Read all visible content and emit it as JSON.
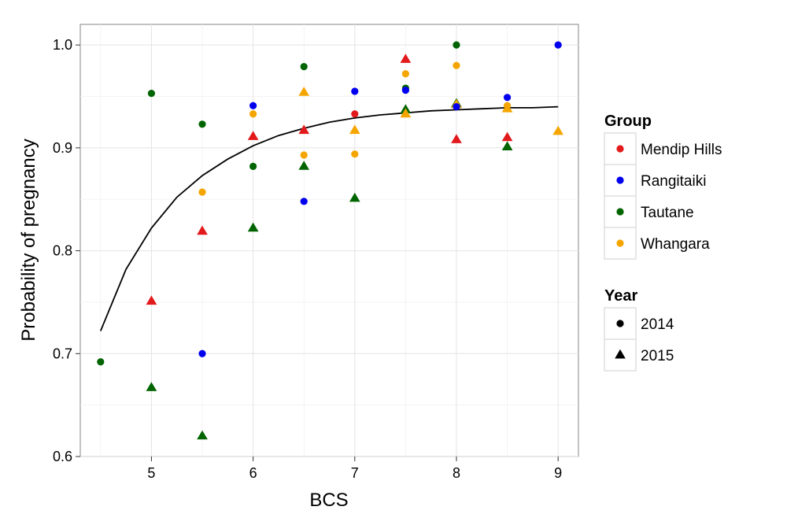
{
  "chart_data": {
    "type": "scatter",
    "xlabel": "BCS",
    "ylabel": "Probability of pregnancy",
    "xlim": [
      4.3,
      9.2
    ],
    "ylim": [
      0.6,
      1.02
    ],
    "x_ticks": [
      5,
      6,
      7,
      8,
      9
    ],
    "y_ticks": [
      0.6,
      0.7,
      0.8,
      0.9,
      1.0
    ],
    "x_tick_labels": [
      "5",
      "6",
      "7",
      "8",
      "9"
    ],
    "y_tick_labels": [
      "0.6",
      "0.7",
      "0.8",
      "0.9",
      "1.0"
    ],
    "grid": true,
    "legend_position": "right",
    "legends": {
      "group": {
        "title": "Group",
        "items": [
          {
            "key": "mendip",
            "label": "Mendip Hills",
            "color": "#e31a1c"
          },
          {
            "key": "rangitaiki",
            "label": "Rangitaiki",
            "color": "#0000ee"
          },
          {
            "key": "tautane",
            "label": "Tautane",
            "color": "#006400"
          },
          {
            "key": "whangara",
            "label": "Whangara",
            "color": "#f5a500"
          }
        ]
      },
      "year": {
        "title": "Year",
        "items": [
          {
            "label": "2014",
            "shape": "circle"
          },
          {
            "label": "2015",
            "shape": "triangle"
          }
        ]
      }
    },
    "points": [
      {
        "group": "tautane",
        "year": "2014",
        "x": 4.5,
        "y": 0.692
      },
      {
        "group": "tautane",
        "year": "2014",
        "x": 5.0,
        "y": 0.953
      },
      {
        "group": "mendip",
        "year": "2015",
        "x": 5.0,
        "y": 0.751
      },
      {
        "group": "tautane",
        "year": "2015",
        "x": 5.0,
        "y": 0.667
      },
      {
        "group": "tautane",
        "year": "2014",
        "x": 5.5,
        "y": 0.923
      },
      {
        "group": "whangara",
        "year": "2014",
        "x": 5.5,
        "y": 0.857
      },
      {
        "group": "mendip",
        "year": "2015",
        "x": 5.5,
        "y": 0.819
      },
      {
        "group": "rangitaiki",
        "year": "2014",
        "x": 5.5,
        "y": 0.7
      },
      {
        "group": "tautane",
        "year": "2015",
        "x": 5.5,
        "y": 0.62
      },
      {
        "group": "rangitaiki",
        "year": "2014",
        "x": 6.0,
        "y": 0.941
      },
      {
        "group": "whangara",
        "year": "2014",
        "x": 6.0,
        "y": 0.933
      },
      {
        "group": "mendip",
        "year": "2015",
        "x": 6.0,
        "y": 0.911
      },
      {
        "group": "tautane",
        "year": "2014",
        "x": 6.0,
        "y": 0.882
      },
      {
        "group": "tautane",
        "year": "2015",
        "x": 6.0,
        "y": 0.822
      },
      {
        "group": "tautane",
        "year": "2014",
        "x": 6.5,
        "y": 0.979
      },
      {
        "group": "whangara",
        "year": "2015",
        "x": 6.5,
        "y": 0.954
      },
      {
        "group": "mendip",
        "year": "2015",
        "x": 6.5,
        "y": 0.917
      },
      {
        "group": "whangara",
        "year": "2014",
        "x": 6.5,
        "y": 0.893
      },
      {
        "group": "tautane",
        "year": "2015",
        "x": 6.5,
        "y": 0.882
      },
      {
        "group": "rangitaiki",
        "year": "2014",
        "x": 6.5,
        "y": 0.848
      },
      {
        "group": "rangitaiki",
        "year": "2014",
        "x": 7.0,
        "y": 0.955
      },
      {
        "group": "mendip",
        "year": "2014",
        "x": 7.0,
        "y": 0.933
      },
      {
        "group": "whangara",
        "year": "2015",
        "x": 7.0,
        "y": 0.917
      },
      {
        "group": "whangara",
        "year": "2014",
        "x": 7.0,
        "y": 0.894
      },
      {
        "group": "tautane",
        "year": "2015",
        "x": 7.0,
        "y": 0.851
      },
      {
        "group": "mendip",
        "year": "2015",
        "x": 7.5,
        "y": 0.986
      },
      {
        "group": "whangara",
        "year": "2014",
        "x": 7.5,
        "y": 0.972
      },
      {
        "group": "tautane",
        "year": "2014",
        "x": 7.5,
        "y": 0.958
      },
      {
        "group": "rangitaiki",
        "year": "2014",
        "x": 7.5,
        "y": 0.956
      },
      {
        "group": "tautane",
        "year": "2015",
        "x": 7.5,
        "y": 0.937
      },
      {
        "group": "whangara",
        "year": "2015",
        "x": 7.5,
        "y": 0.933
      },
      {
        "group": "tautane",
        "year": "2014",
        "x": 8.0,
        "y": 1.0
      },
      {
        "group": "whangara",
        "year": "2014",
        "x": 8.0,
        "y": 0.98
      },
      {
        "group": "tautane",
        "year": "2015",
        "x": 8.0,
        "y": 0.943
      },
      {
        "group": "whangara",
        "year": "2015",
        "x": 8.0,
        "y": 0.942
      },
      {
        "group": "rangitaiki",
        "year": "2014",
        "x": 8.0,
        "y": 0.94
      },
      {
        "group": "mendip",
        "year": "2015",
        "x": 8.0,
        "y": 0.908
      },
      {
        "group": "rangitaiki",
        "year": "2014",
        "x": 8.5,
        "y": 0.949
      },
      {
        "group": "whangara",
        "year": "2014",
        "x": 8.5,
        "y": 0.941
      },
      {
        "group": "whangara",
        "year": "2015",
        "x": 8.5,
        "y": 0.938
      },
      {
        "group": "mendip",
        "year": "2015",
        "x": 8.5,
        "y": 0.91
      },
      {
        "group": "tautane",
        "year": "2015",
        "x": 8.5,
        "y": 0.901
      },
      {
        "group": "rangitaiki",
        "year": "2014",
        "x": 9.0,
        "y": 1.0
      },
      {
        "group": "whangara",
        "year": "2015",
        "x": 9.0,
        "y": 0.916
      }
    ],
    "fitted_curve": {
      "x": [
        4.5,
        4.75,
        5.0,
        5.25,
        5.5,
        5.75,
        6.0,
        6.25,
        6.5,
        6.75,
        7.0,
        7.25,
        7.5,
        7.75,
        8.0,
        8.25,
        8.5,
        8.75,
        9.0
      ],
      "y": [
        0.722,
        0.782,
        0.822,
        0.852,
        0.873,
        0.889,
        0.902,
        0.912,
        0.919,
        0.925,
        0.929,
        0.932,
        0.934,
        0.936,
        0.937,
        0.938,
        0.939,
        0.939,
        0.94
      ]
    }
  }
}
